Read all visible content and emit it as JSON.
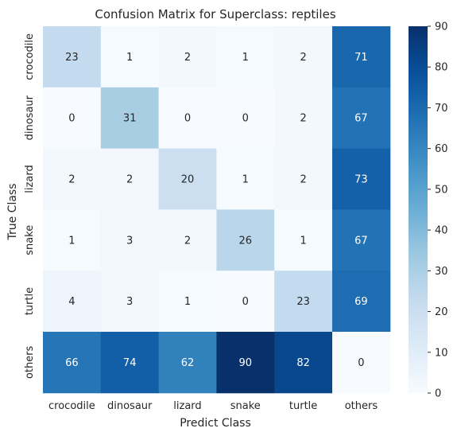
{
  "chart_data": {
    "type": "heatmap",
    "title": "Confusion Matrix for Superclass: reptiles",
    "xlabel": "Predict Class",
    "ylabel": "True Class",
    "x_categories": [
      "crocodile",
      "dinosaur",
      "lizard",
      "snake",
      "turtle",
      "others"
    ],
    "y_categories": [
      "crocodile",
      "dinosaur",
      "lizard",
      "snake",
      "turtle",
      "others"
    ],
    "values": [
      [
        23,
        1,
        2,
        1,
        2,
        71
      ],
      [
        0,
        31,
        0,
        0,
        2,
        67
      ],
      [
        2,
        2,
        20,
        1,
        2,
        73
      ],
      [
        1,
        3,
        2,
        26,
        1,
        67
      ],
      [
        4,
        3,
        1,
        0,
        23,
        69
      ],
      [
        66,
        74,
        62,
        90,
        82,
        0
      ]
    ],
    "colorbar": {
      "colormap": "Blues",
      "min": 0,
      "max": 90,
      "ticks": [
        0,
        10,
        20,
        30,
        40,
        50,
        60,
        70,
        80,
        90
      ]
    },
    "grid": false
  }
}
